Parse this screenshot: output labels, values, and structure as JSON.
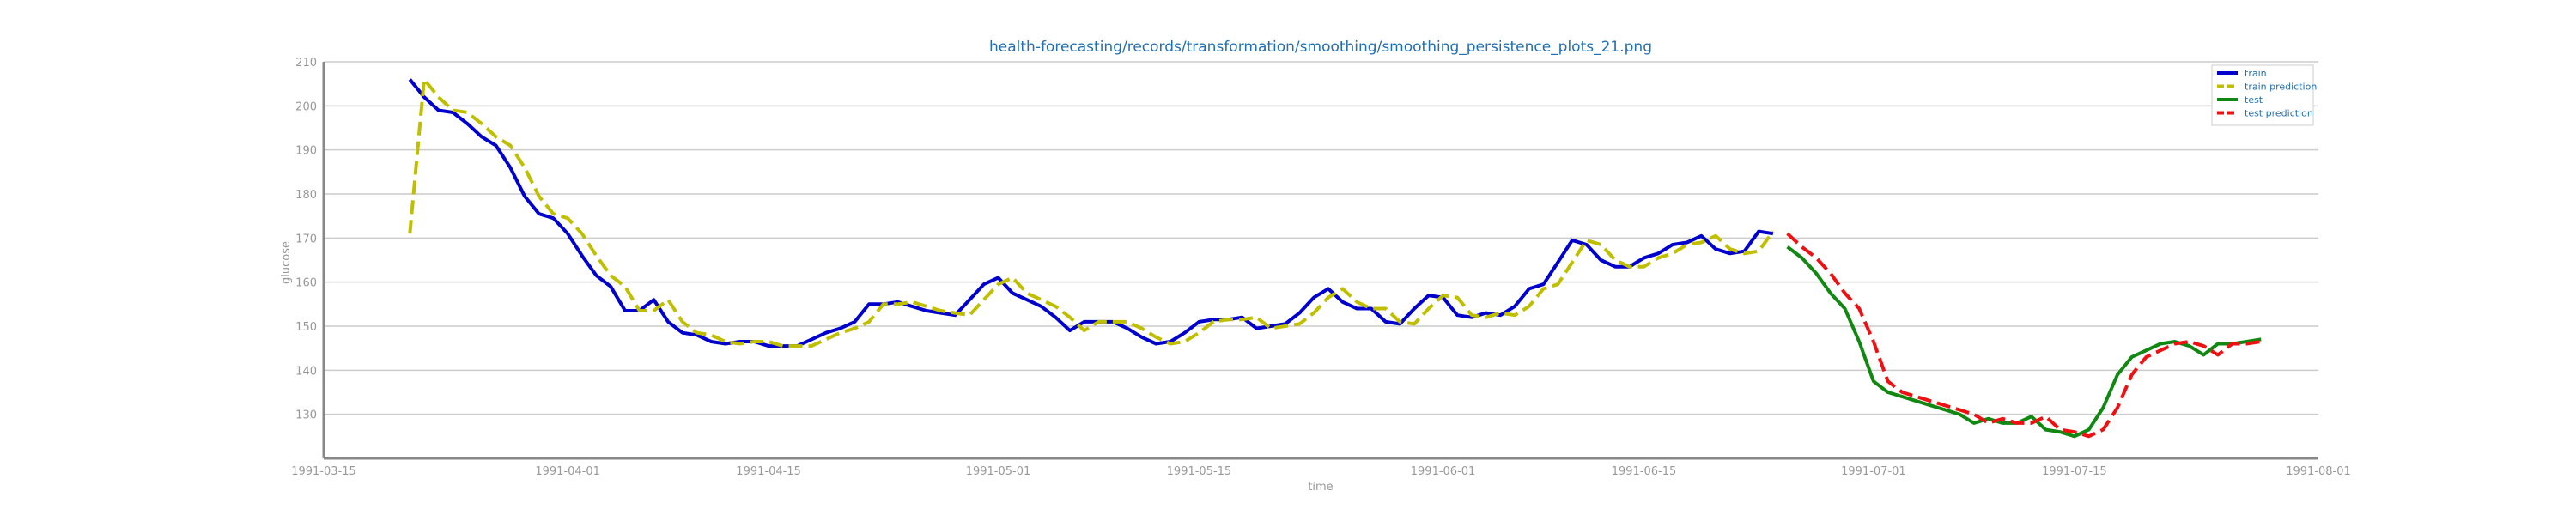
{
  "chart_data": {
    "type": "line",
    "title": "health-forecasting/records/transformation/smoothing/smoothing_persistence_plots_21.png",
    "xlabel": "time",
    "ylabel": "glucose",
    "xlim": [
      "1991-03-15",
      "1991-08-01"
    ],
    "ylim": [
      120,
      210
    ],
    "x_ticks": [
      "1991-03-15",
      "1991-04-01",
      "1991-04-15",
      "1991-05-01",
      "1991-05-15",
      "1991-06-01",
      "1991-06-15",
      "1991-07-01",
      "1991-07-15",
      "1991-08-01"
    ],
    "y_ticks": [
      130,
      140,
      150,
      160,
      170,
      180,
      190,
      200,
      210
    ],
    "grid": "horizontal",
    "legend_position": "top-right",
    "series": [
      {
        "name": "train",
        "color": "#0000cc",
        "style": "solid",
        "points": [
          [
            "1991-03-21",
            206
          ],
          [
            "1991-03-22",
            202
          ],
          [
            "1991-03-23",
            199
          ],
          [
            "1991-03-24",
            198.5
          ],
          [
            "1991-03-25",
            196
          ],
          [
            "1991-03-26",
            193
          ],
          [
            "1991-03-27",
            191
          ],
          [
            "1991-03-28",
            186
          ],
          [
            "1991-03-29",
            179.5
          ],
          [
            "1991-03-30",
            175.5
          ],
          [
            "1991-03-31",
            174.5
          ],
          [
            "1991-04-01",
            171
          ],
          [
            "1991-04-02",
            166
          ],
          [
            "1991-04-03",
            161.5
          ],
          [
            "1991-04-04",
            159
          ],
          [
            "1991-04-05",
            153.5
          ],
          [
            "1991-04-06",
            153.5
          ],
          [
            "1991-04-07",
            156
          ],
          [
            "1991-04-08",
            151
          ],
          [
            "1991-04-09",
            148.5
          ],
          [
            "1991-04-10",
            148
          ],
          [
            "1991-04-11",
            146.5
          ],
          [
            "1991-04-12",
            146
          ],
          [
            "1991-04-13",
            146.5
          ],
          [
            "1991-04-14",
            146.5
          ],
          [
            "1991-04-15",
            145.5
          ],
          [
            "1991-04-16",
            145.5
          ],
          [
            "1991-04-17",
            145.5
          ],
          [
            "1991-04-18",
            147
          ],
          [
            "1991-04-19",
            148.5
          ],
          [
            "1991-04-20",
            149.5
          ],
          [
            "1991-04-21",
            151
          ],
          [
            "1991-04-22",
            155
          ],
          [
            "1991-04-23",
            155
          ],
          [
            "1991-04-24",
            155.5
          ],
          [
            "1991-04-25",
            154.5
          ],
          [
            "1991-04-26",
            153.5
          ],
          [
            "1991-04-27",
            153
          ],
          [
            "1991-04-28",
            152.5
          ],
          [
            "1991-04-29",
            156
          ],
          [
            "1991-04-30",
            159.5
          ],
          [
            "1991-05-01",
            161
          ],
          [
            "1991-05-02",
            157.5
          ],
          [
            "1991-05-03",
            156
          ],
          [
            "1991-05-04",
            154.5
          ],
          [
            "1991-05-05",
            152
          ],
          [
            "1991-05-06",
            149
          ],
          [
            "1991-05-07",
            151
          ],
          [
            "1991-05-08",
            151
          ],
          [
            "1991-05-09",
            151
          ],
          [
            "1991-05-10",
            149.5
          ],
          [
            "1991-05-11",
            147.5
          ],
          [
            "1991-05-12",
            146
          ],
          [
            "1991-05-13",
            146.5
          ],
          [
            "1991-05-14",
            148.5
          ],
          [
            "1991-05-15",
            151
          ],
          [
            "1991-05-16",
            151.5
          ],
          [
            "1991-05-17",
            151.5
          ],
          [
            "1991-05-18",
            152
          ],
          [
            "1991-05-19",
            149.5
          ],
          [
            "1991-05-20",
            150
          ],
          [
            "1991-05-21",
            150.5
          ],
          [
            "1991-05-22",
            153
          ],
          [
            "1991-05-23",
            156.5
          ],
          [
            "1991-05-24",
            158.5
          ],
          [
            "1991-05-25",
            155.5
          ],
          [
            "1991-05-26",
            154
          ],
          [
            "1991-05-27",
            154
          ],
          [
            "1991-05-28",
            151
          ],
          [
            "1991-05-29",
            150.5
          ],
          [
            "1991-05-30",
            154
          ],
          [
            "1991-05-31",
            157
          ],
          [
            "1991-06-01",
            156.5
          ],
          [
            "1991-06-02",
            152.5
          ],
          [
            "1991-06-03",
            152
          ],
          [
            "1991-06-04",
            153
          ],
          [
            "1991-06-05",
            152.5
          ],
          [
            "1991-06-06",
            154.5
          ],
          [
            "1991-06-07",
            158.5
          ],
          [
            "1991-06-08",
            159.5
          ],
          [
            "1991-06-09",
            164.5
          ],
          [
            "1991-06-10",
            169.5
          ],
          [
            "1991-06-11",
            168.5
          ],
          [
            "1991-06-12",
            165
          ],
          [
            "1991-06-13",
            163.5
          ],
          [
            "1991-06-14",
            163.5
          ],
          [
            "1991-06-15",
            165.5
          ],
          [
            "1991-06-16",
            166.5
          ],
          [
            "1991-06-17",
            168.5
          ],
          [
            "1991-06-18",
            169
          ],
          [
            "1991-06-19",
            170.5
          ],
          [
            "1991-06-20",
            167.5
          ],
          [
            "1991-06-21",
            166.5
          ],
          [
            "1991-06-22",
            167
          ],
          [
            "1991-06-23",
            171.5
          ],
          [
            "1991-06-24",
            171
          ]
        ]
      },
      {
        "name": "train prediction",
        "color": "#bfbf00",
        "style": "dashed",
        "points": [
          [
            "1991-03-21",
            171
          ],
          [
            "1991-03-22",
            206
          ],
          [
            "1991-03-23",
            202
          ],
          [
            "1991-03-24",
            199
          ],
          [
            "1991-03-25",
            198.5
          ],
          [
            "1991-03-26",
            196
          ],
          [
            "1991-03-27",
            193
          ],
          [
            "1991-03-28",
            191
          ],
          [
            "1991-03-29",
            186
          ],
          [
            "1991-03-30",
            179.5
          ],
          [
            "1991-03-31",
            175.5
          ],
          [
            "1991-04-01",
            174.5
          ],
          [
            "1991-04-02",
            171
          ],
          [
            "1991-04-03",
            166
          ],
          [
            "1991-04-04",
            161.5
          ],
          [
            "1991-04-05",
            159
          ],
          [
            "1991-04-06",
            153.5
          ],
          [
            "1991-04-07",
            153.5
          ],
          [
            "1991-04-08",
            156
          ],
          [
            "1991-04-09",
            151
          ],
          [
            "1991-04-10",
            148.5
          ],
          [
            "1991-04-11",
            148
          ],
          [
            "1991-04-12",
            146.5
          ],
          [
            "1991-04-13",
            146
          ],
          [
            "1991-04-14",
            146.5
          ],
          [
            "1991-04-15",
            146.5
          ],
          [
            "1991-04-16",
            145.5
          ],
          [
            "1991-04-17",
            145.5
          ],
          [
            "1991-04-18",
            145.5
          ],
          [
            "1991-04-19",
            147
          ],
          [
            "1991-04-20",
            148.5
          ],
          [
            "1991-04-21",
            149.5
          ],
          [
            "1991-04-22",
            151
          ],
          [
            "1991-04-23",
            155
          ],
          [
            "1991-04-24",
            155
          ],
          [
            "1991-04-25",
            155.5
          ],
          [
            "1991-04-26",
            154.5
          ],
          [
            "1991-04-27",
            153.5
          ],
          [
            "1991-04-28",
            153
          ],
          [
            "1991-04-29",
            152.5
          ],
          [
            "1991-04-30",
            156
          ],
          [
            "1991-05-01",
            159.5
          ],
          [
            "1991-05-02",
            161
          ],
          [
            "1991-05-03",
            157.5
          ],
          [
            "1991-05-04",
            156
          ],
          [
            "1991-05-05",
            154.5
          ],
          [
            "1991-05-06",
            152
          ],
          [
            "1991-05-07",
            149
          ],
          [
            "1991-05-08",
            151
          ],
          [
            "1991-05-09",
            151
          ],
          [
            "1991-05-10",
            151
          ],
          [
            "1991-05-11",
            149.5
          ],
          [
            "1991-05-12",
            147.5
          ],
          [
            "1991-05-13",
            146
          ],
          [
            "1991-05-14",
            146.5
          ],
          [
            "1991-05-15",
            148.5
          ],
          [
            "1991-05-16",
            151
          ],
          [
            "1991-05-17",
            151.5
          ],
          [
            "1991-05-18",
            151.5
          ],
          [
            "1991-05-19",
            152
          ],
          [
            "1991-05-20",
            149.5
          ],
          [
            "1991-05-21",
            150
          ],
          [
            "1991-05-22",
            150.5
          ],
          [
            "1991-05-23",
            153
          ],
          [
            "1991-05-24",
            156.5
          ],
          [
            "1991-05-25",
            158.5
          ],
          [
            "1991-05-26",
            155.5
          ],
          [
            "1991-05-27",
            154
          ],
          [
            "1991-05-28",
            154
          ],
          [
            "1991-05-29",
            151
          ],
          [
            "1991-05-30",
            150.5
          ],
          [
            "1991-05-31",
            154
          ],
          [
            "1991-06-01",
            157
          ],
          [
            "1991-06-02",
            156.5
          ],
          [
            "1991-06-03",
            152.5
          ],
          [
            "1991-06-04",
            152
          ],
          [
            "1991-06-05",
            153
          ],
          [
            "1991-06-06",
            152.5
          ],
          [
            "1991-06-07",
            154.5
          ],
          [
            "1991-06-08",
            158.5
          ],
          [
            "1991-06-09",
            159.5
          ],
          [
            "1991-06-10",
            164.5
          ],
          [
            "1991-06-11",
            169.5
          ],
          [
            "1991-06-12",
            168.5
          ],
          [
            "1991-06-13",
            165
          ],
          [
            "1991-06-14",
            163.5
          ],
          [
            "1991-06-15",
            163.5
          ],
          [
            "1991-06-16",
            165.5
          ],
          [
            "1991-06-17",
            166.5
          ],
          [
            "1991-06-18",
            168.5
          ],
          [
            "1991-06-19",
            169
          ],
          [
            "1991-06-20",
            170.5
          ],
          [
            "1991-06-21",
            167.5
          ],
          [
            "1991-06-22",
            166.5
          ],
          [
            "1991-06-23",
            167
          ],
          [
            "1991-06-24",
            171.5
          ]
        ]
      },
      {
        "name": "test",
        "color": "#118811",
        "style": "solid",
        "points": [
          [
            "1991-06-25",
            168
          ],
          [
            "1991-06-26",
            165.5
          ],
          [
            "1991-06-27",
            162
          ],
          [
            "1991-06-28",
            157.5
          ],
          [
            "1991-06-29",
            154
          ],
          [
            "1991-06-30",
            146.5
          ],
          [
            "1991-07-01",
            137.5
          ],
          [
            "1991-07-02",
            135
          ],
          [
            "1991-07-03",
            134
          ],
          [
            "1991-07-04",
            133
          ],
          [
            "1991-07-05",
            132
          ],
          [
            "1991-07-06",
            131
          ],
          [
            "1991-07-07",
            130
          ],
          [
            "1991-07-08",
            128
          ],
          [
            "1991-07-09",
            129
          ],
          [
            "1991-07-10",
            128
          ],
          [
            "1991-07-11",
            128
          ],
          [
            "1991-07-12",
            129.5
          ],
          [
            "1991-07-13",
            126.5
          ],
          [
            "1991-07-14",
            126
          ],
          [
            "1991-07-15",
            125
          ],
          [
            "1991-07-16",
            126.5
          ],
          [
            "1991-07-17",
            131.5
          ],
          [
            "1991-07-18",
            139
          ],
          [
            "1991-07-19",
            143
          ],
          [
            "1991-07-20",
            144.5
          ],
          [
            "1991-07-21",
            146
          ],
          [
            "1991-07-22",
            146.5
          ],
          [
            "1991-07-23",
            145.5
          ],
          [
            "1991-07-24",
            143.5
          ],
          [
            "1991-07-25",
            146
          ],
          [
            "1991-07-26",
            146
          ],
          [
            "1991-07-27",
            146.5
          ],
          [
            "1991-07-28",
            147
          ]
        ]
      },
      {
        "name": "test prediction",
        "color": "#ee1111",
        "style": "dashed",
        "points": [
          [
            "1991-06-25",
            171
          ],
          [
            "1991-06-26",
            168
          ],
          [
            "1991-06-27",
            165.5
          ],
          [
            "1991-06-28",
            162
          ],
          [
            "1991-06-29",
            157.5
          ],
          [
            "1991-06-30",
            154
          ],
          [
            "1991-07-01",
            146.5
          ],
          [
            "1991-07-02",
            137.5
          ],
          [
            "1991-07-03",
            135
          ],
          [
            "1991-07-04",
            134
          ],
          [
            "1991-07-05",
            133
          ],
          [
            "1991-07-06",
            132
          ],
          [
            "1991-07-07",
            131
          ],
          [
            "1991-07-08",
            130
          ],
          [
            "1991-07-09",
            128
          ],
          [
            "1991-07-10",
            129
          ],
          [
            "1991-07-11",
            128
          ],
          [
            "1991-07-12",
            128
          ],
          [
            "1991-07-13",
            129.5
          ],
          [
            "1991-07-14",
            126.5
          ],
          [
            "1991-07-15",
            126
          ],
          [
            "1991-07-16",
            125
          ],
          [
            "1991-07-17",
            126.5
          ],
          [
            "1991-07-18",
            131.5
          ],
          [
            "1991-07-19",
            139
          ],
          [
            "1991-07-20",
            143
          ],
          [
            "1991-07-21",
            144.5
          ],
          [
            "1991-07-22",
            146
          ],
          [
            "1991-07-23",
            146.5
          ],
          [
            "1991-07-24",
            145.5
          ],
          [
            "1991-07-25",
            143.5
          ],
          [
            "1991-07-26",
            146
          ],
          [
            "1991-07-27",
            146
          ],
          [
            "1991-07-28",
            146.5
          ]
        ]
      }
    ]
  }
}
